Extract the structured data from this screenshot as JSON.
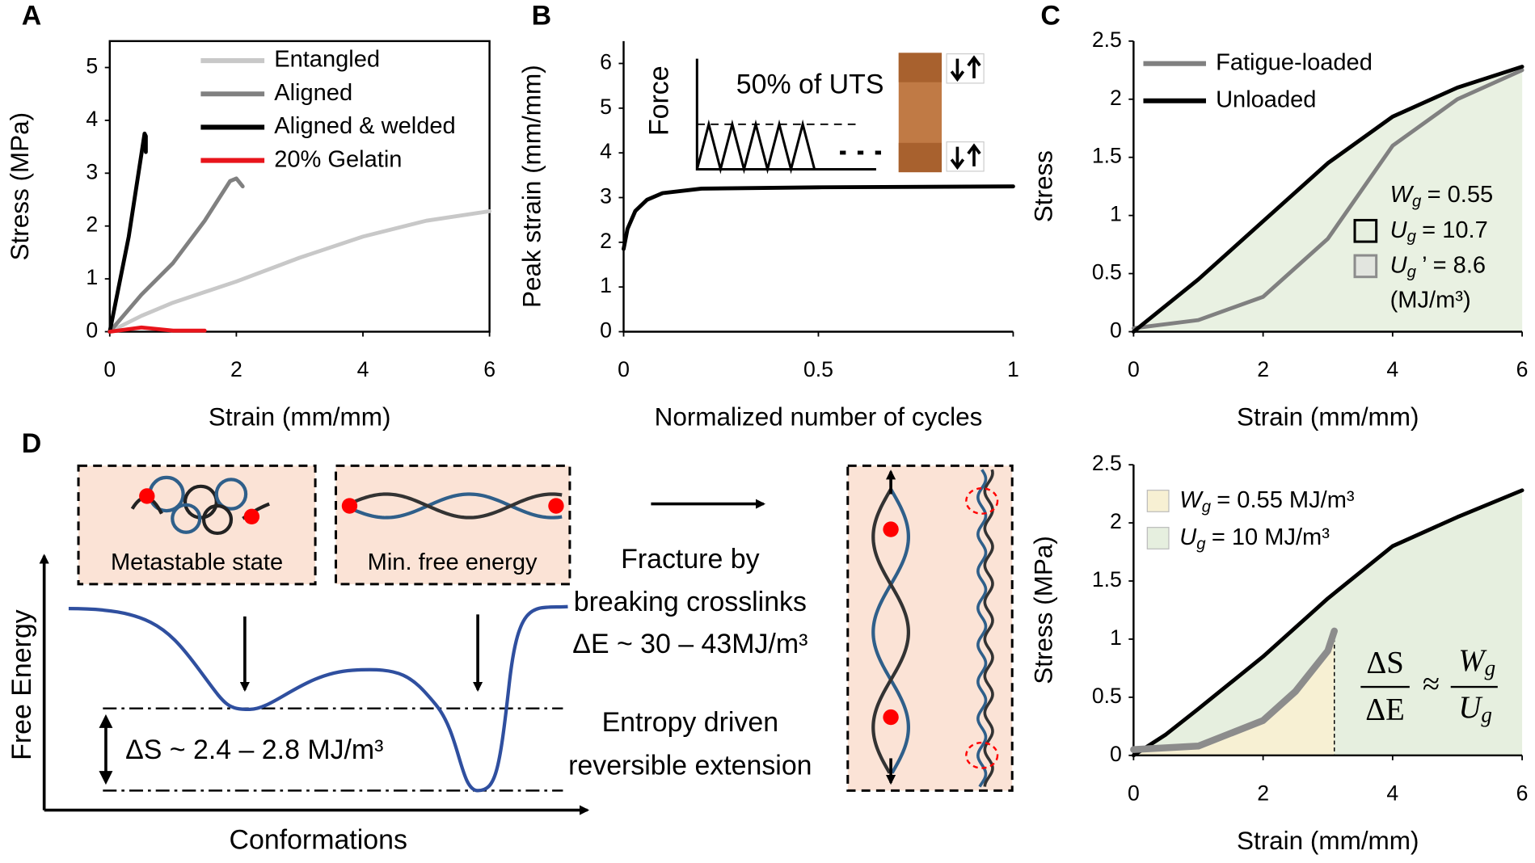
{
  "panel_labels": [
    "A",
    "B",
    "C",
    "D"
  ],
  "chart_data": [
    {
      "type": "line",
      "x_label": "Strain (mm/mm)",
      "y_label": "Stress (MPa)",
      "xlim": [
        0,
        6
      ],
      "xticks": [
        0,
        2,
        4,
        6
      ],
      "ylim": [
        0,
        5.5
      ],
      "yticks": [
        0,
        1,
        2,
        3,
        4,
        5
      ],
      "grid": false,
      "legend": "upper right",
      "series": [
        {
          "name": "Entangled",
          "color": "#c8c8c8",
          "x": [
            0,
            0.5,
            1,
            2,
            3,
            4,
            5,
            6
          ],
          "values": [
            0,
            0.3,
            0.55,
            0.95,
            1.4,
            1.8,
            2.1,
            2.28
          ]
        },
        {
          "name": "Aligned",
          "color": "#808080",
          "x": [
            0,
            0.5,
            1,
            1.5,
            1.9,
            2.0,
            2.1
          ],
          "values": [
            0,
            0.7,
            1.3,
            2.1,
            2.85,
            2.9,
            2.75
          ]
        },
        {
          "name": "Aligned & welded",
          "color": "#000000",
          "x": [
            0,
            0.3,
            0.55,
            0.57,
            0.57
          ],
          "values": [
            0,
            1.8,
            3.75,
            3.7,
            3.4
          ]
        },
        {
          "name": "20% Gelatin",
          "color": "#e8141b",
          "x": [
            0,
            0.5,
            1,
            1.5
          ],
          "values": [
            0,
            0.08,
            0.02,
            0.02
          ]
        }
      ]
    },
    {
      "type": "line",
      "x_label": "Normalized number of cycles",
      "y_label": "Peak strain (mm/mm)",
      "xlim": [
        0,
        1
      ],
      "xticks": [
        0,
        0.5,
        1
      ],
      "ylim": [
        0,
        6.5
      ],
      "yticks": [
        0,
        1,
        2,
        3,
        4,
        5,
        6
      ],
      "grid": false,
      "inset": {
        "y_label": "Force",
        "text": "50% of UTS"
      },
      "series": [
        {
          "color": "#000000",
          "x": [
            0,
            0.01,
            0.03,
            0.06,
            0.1,
            0.2,
            0.5,
            1
          ],
          "values": [
            1.85,
            2.3,
            2.7,
            2.95,
            3.1,
            3.2,
            3.23,
            3.25
          ]
        }
      ]
    },
    {
      "type": "line",
      "x_label": "Strain (mm/mm)",
      "y_label": "Stress",
      "xlim": [
        0,
        6
      ],
      "xticks": [
        0,
        2,
        4,
        6
      ],
      "ylim": [
        0,
        2.5
      ],
      "yticks": [
        0,
        0.5,
        1,
        1.5,
        2,
        2.5
      ],
      "grid": false,
      "legend": "upper left",
      "series": [
        {
          "name": "Fatigue-loaded",
          "color": "#808080",
          "fill": "#e2e5df",
          "x": [
            0,
            1,
            2,
            3,
            3.5,
            4,
            5,
            6
          ],
          "values": [
            0.03,
            0.1,
            0.3,
            0.8,
            1.2,
            1.6,
            2.0,
            2.25
          ]
        },
        {
          "name": "Unloaded",
          "color": "#000000",
          "fill": "#e9f1e2",
          "x": [
            0,
            1,
            2,
            3,
            4,
            5,
            6
          ],
          "values": [
            0,
            0.45,
            0.95,
            1.45,
            1.85,
            2.1,
            2.28
          ]
        }
      ],
      "annotations": [
        {
          "symbol": "W",
          "sub": "g",
          "text": "= 0.55",
          "color": "#000000"
        },
        {
          "symbol": "U",
          "sub": "g",
          "text": "= 10.7",
          "color": "#000000",
          "box": "#e6efdf"
        },
        {
          "symbol": "U",
          "sub": "g",
          "text": "’ = 8.6",
          "color": "#8c8c8c",
          "box": "#e2e5df"
        }
      ],
      "unit": "(MJ/m³)"
    },
    {
      "type": "line",
      "x_label": "Strain (mm/mm)",
      "y_label": "Stress (MPa)",
      "xlim": [
        0,
        6
      ],
      "xticks": [
        0,
        2,
        4,
        6
      ],
      "ylim": [
        0,
        2.5
      ],
      "yticks": [
        0,
        0.5,
        1,
        1.5,
        2,
        2.5
      ],
      "grid": false,
      "series": [
        {
          "color": "#000000",
          "fill": "#e6efdf",
          "x": [
            0,
            0.5,
            1,
            2,
            3,
            4,
            5,
            6
          ],
          "values": [
            0,
            0.18,
            0.4,
            0.85,
            1.35,
            1.8,
            2.05,
            2.28
          ]
        },
        {
          "color": "#8c8c8c",
          "fill": "#f7f0d3",
          "x": [
            0,
            1,
            2,
            2.5,
            3,
            3.1
          ],
          "values": [
            0.05,
            0.08,
            0.3,
            0.55,
            0.9,
            1.07
          ]
        }
      ],
      "legend_boxes": [
        {
          "symbol": "W",
          "sub": "g",
          "text": "= 0.55 MJ/m³",
          "color": "#f7f0d3"
        },
        {
          "symbol": "U",
          "sub": "g",
          "text": "= 10 MJ/m³",
          "color": "#e6efdf"
        }
      ],
      "equation": {
        "left_top": "ΔS",
        "left_bottom": "ΔE",
        "relation": "≈",
        "right_top": {
          "symbol": "W",
          "sub": "g"
        },
        "right_bottom": {
          "symbol": "U",
          "sub": "g"
        }
      }
    }
  ],
  "diagram": {
    "state_labels": [
      "Metastable state",
      "Min. free energy"
    ],
    "fracture_text": [
      "Fracture by",
      "breaking crosslinks",
      "ΔE ~ 30 – 43MJ/m³"
    ],
    "entropy_text": [
      "Entropy driven",
      "reversible extension"
    ],
    "delta_s": "ΔS ~ 2.4 – 2.8 MJ/m³",
    "y_axis_label": "Free Energy",
    "x_axis_label": "Conformations"
  }
}
